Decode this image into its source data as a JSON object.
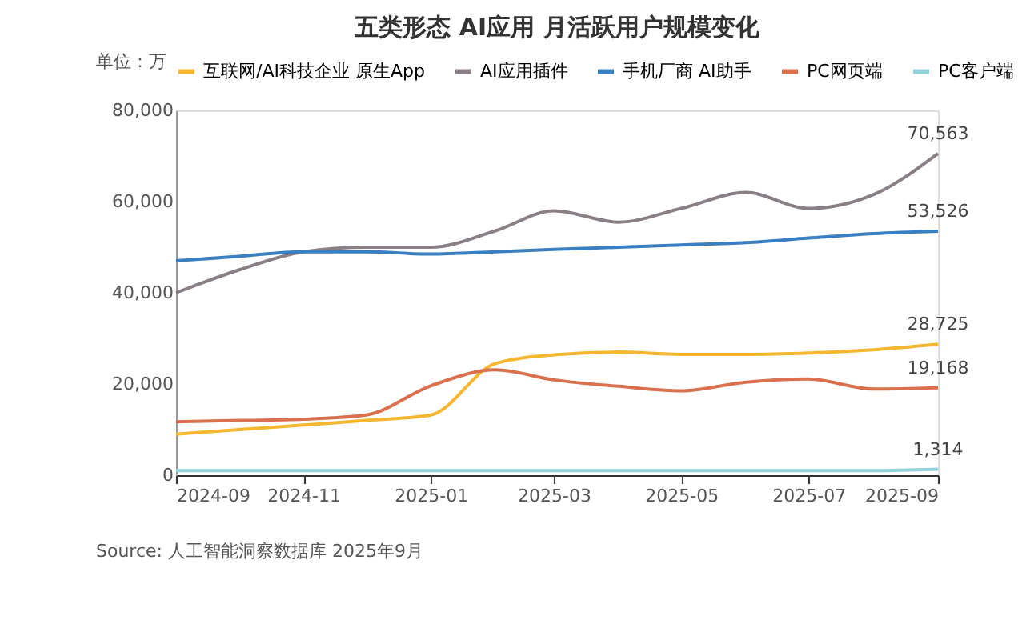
{
  "chart_data": {
    "type": "line",
    "title": "五类形态 AI应用 月活跃用户规模变化",
    "x": [
      "2024-09",
      "2024-10",
      "2024-11",
      "2024-12",
      "2025-01",
      "2025-02",
      "2025-03",
      "2025-04",
      "2025-05",
      "2025-06",
      "2025-07",
      "2025-08",
      "2025-09"
    ],
    "series": [
      {
        "name": "互联网/AI科技企业 原生App",
        "color": "#f5b731",
        "values": [
          9000,
          10000,
          11000,
          12000,
          13200,
          24500,
          26400,
          27000,
          26500,
          26500,
          26800,
          27500,
          28725
        ],
        "value_labels": [
          null,
          null,
          null,
          null,
          null,
          null,
          null,
          null,
          null,
          null,
          null,
          null,
          "28,725"
        ]
      },
      {
        "name": "AI应用插件",
        "color": "#8a7f86",
        "values": [
          40000,
          45000,
          49000,
          50000,
          50000,
          53600,
          58000,
          55500,
          58500,
          62000,
          58500,
          61500,
          70563
        ],
        "value_labels": [
          null,
          null,
          null,
          null,
          null,
          null,
          null,
          null,
          null,
          null,
          null,
          null,
          "70,563"
        ]
      },
      {
        "name": "手机厂商 AI助手",
        "color": "#3a7fc0",
        "values": [
          47000,
          48000,
          49000,
          49000,
          48500,
          49000,
          49500,
          50000,
          50500,
          51000,
          52000,
          53000,
          53526
        ],
        "value_labels": [
          null,
          null,
          null,
          null,
          null,
          null,
          null,
          null,
          null,
          null,
          null,
          null,
          "53,526"
        ]
      },
      {
        "name": "PC网页端",
        "color": "#d9714e",
        "values": [
          11700,
          12000,
          12300,
          13200,
          19600,
          23100,
          20900,
          19500,
          18500,
          20400,
          21100,
          18900,
          19168
        ],
        "value_labels": [
          null,
          null,
          null,
          null,
          null,
          null,
          null,
          null,
          null,
          null,
          null,
          null,
          "19,168"
        ]
      },
      {
        "name": "PC客户端",
        "color": "#8fd3d8",
        "values": [
          1000,
          1000,
          1000,
          1000,
          1000,
          1000,
          1000,
          1000,
          1000,
          1000,
          1000,
          1000,
          1314
        ],
        "value_labels": [
          null,
          null,
          null,
          null,
          null,
          null,
          null,
          null,
          null,
          null,
          null,
          null,
          "1,314"
        ]
      }
    ],
    "xlim": [
      "2024-09",
      "2025-09"
    ],
    "xticks": [
      "2024-09",
      "2024-11",
      "2025-01",
      "2025-03",
      "2025-05",
      "2025-07",
      "2025-09"
    ],
    "ylim": [
      0,
      80000
    ],
    "yticks": [
      0,
      {
        "value": 20000,
        "label": "20,000"
      },
      {
        "value": 40000,
        "label": "40,000"
      },
      {
        "value": 60000,
        "label": "60,000"
      },
      {
        "value": 80000,
        "label": "80,000"
      }
    ],
    "grid": false,
    "legend": "top",
    "marker": "none",
    "line_style": "solid",
    "annotations": [
      "单位：万",
      "Source: 人工智能洞察数据库 2025年9月"
    ]
  }
}
